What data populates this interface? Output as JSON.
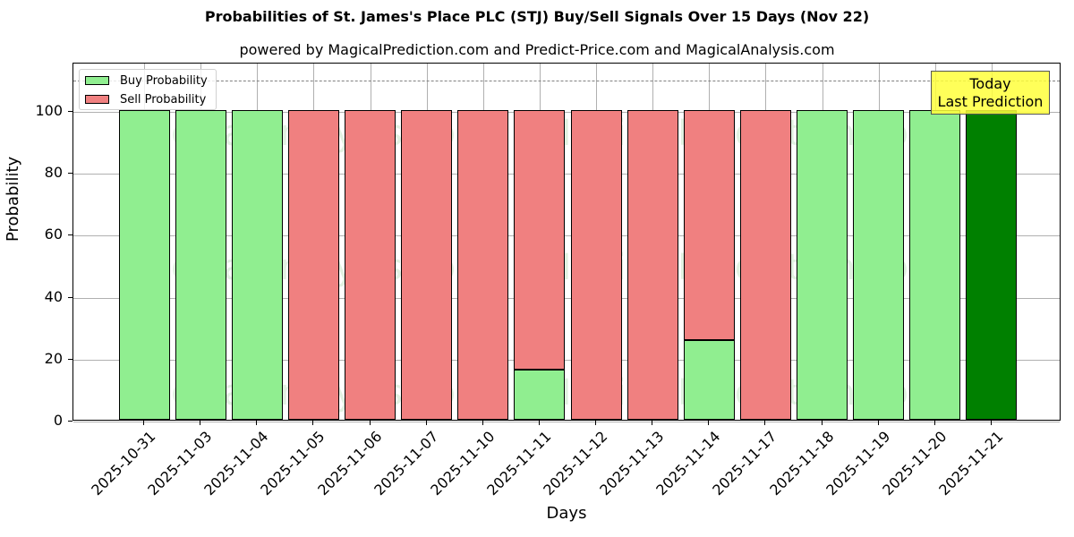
{
  "chart_data": {
    "type": "bar",
    "stacked": true,
    "title": "Probabilities of St. James's Place PLC (STJ) Buy/Sell Signals Over 15 Days (Nov 22)",
    "subtitle": "powered by MagicalPrediction.com and Predict-Price.com and MagicalAnalysis.com",
    "xlabel": "Days",
    "ylabel": "Probability",
    "ylim": [
      0,
      115.6
    ],
    "yticks": [
      0,
      20,
      40,
      60,
      80,
      100
    ],
    "reference_line": 110,
    "grid": true,
    "legend_position": "upper left",
    "categories": [
      "2025-10-31",
      "2025-11-03",
      "2025-11-04",
      "2025-11-05",
      "2025-11-06",
      "2025-11-07",
      "2025-11-10",
      "2025-11-11",
      "2025-11-12",
      "2025-11-13",
      "2025-11-14",
      "2025-11-17",
      "2025-11-18",
      "2025-11-19",
      "2025-11-20",
      "2025-11-21"
    ],
    "series": [
      {
        "name": "Buy Probability",
        "color": "#90ee90",
        "values": [
          100,
          100,
          100,
          0,
          0,
          0,
          0,
          16.2,
          0,
          0,
          25.8,
          0,
          100,
          100,
          100,
          100
        ]
      },
      {
        "name": "Sell Probability",
        "color": "#f08080",
        "values": [
          0,
          0,
          0,
          100,
          100,
          100,
          100,
          83.8,
          100,
          100,
          74.2,
          100,
          0,
          0,
          0,
          0
        ]
      }
    ],
    "highlight": {
      "index": 15,
      "color": "#008000"
    },
    "annotation": {
      "line1": "Today",
      "line2": "Last Prediction"
    }
  },
  "legend": {
    "buy": "Buy Probability",
    "sell": "Sell Probability"
  },
  "watermarks": [
    "MagicalAnalysis.com",
    "MagicalPrediction.com"
  ]
}
